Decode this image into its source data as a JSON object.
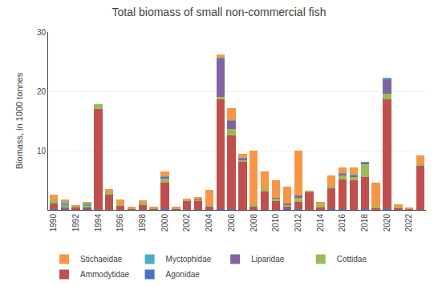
{
  "chart_data": {
    "type": "bar",
    "title": "Total biomass of small non-commercial fish",
    "ylabel": "Biomass, in 1000 tonnes",
    "categories": [
      "1990",
      null,
      "1992",
      null,
      "1994",
      null,
      "1996",
      null,
      "1998",
      null,
      "2000",
      null,
      "2002",
      null,
      "2004",
      null,
      "2006",
      null,
      "2008",
      null,
      "2010",
      null,
      "2012",
      null,
      "2014",
      null,
      "2016",
      null,
      "2018",
      null,
      "2020",
      null,
      "2022",
      null
    ],
    "series": [
      {
        "name": "Agonidae",
        "color": "#4472C4",
        "values": [
          0.1,
          0.1,
          0.05,
          0.1,
          0.05,
          0.05,
          0.05,
          0.05,
          0.05,
          0.05,
          0.1,
          0.05,
          0.05,
          0.05,
          0.1,
          0.1,
          0.1,
          0.05,
          0.05,
          0.05,
          0.05,
          0.1,
          0.1,
          0.05,
          0.05,
          0.1,
          0.1,
          0.05,
          0.1,
          0.05,
          0.1,
          0.05,
          0.05,
          0.05
        ]
      },
      {
        "name": "Ammodytidae",
        "color": "#C0504D",
        "values": [
          1.0,
          0.4,
          0.4,
          0.4,
          17.0,
          2.5,
          0.6,
          0.2,
          0.7,
          0.2,
          4.5,
          0.2,
          1.5,
          1.5,
          0.2,
          18.5,
          12.5,
          8.0,
          0.5,
          3.0,
          1.5,
          0.5,
          1.2,
          3.0,
          0.4,
          3.5,
          5.0,
          5.0,
          5.5,
          0.3,
          18.5,
          0.3,
          0.1,
          7.5
        ]
      },
      {
        "name": "Cottidae",
        "color": "#9BBB59",
        "values": [
          0.5,
          0.2,
          0.1,
          0.2,
          0.8,
          0.4,
          0.3,
          0.1,
          0.5,
          0.1,
          0.8,
          0.1,
          0.1,
          0.1,
          0.1,
          0.5,
          1.0,
          0.3,
          0.4,
          0.4,
          0.4,
          0.3,
          0.7,
          0.2,
          0.4,
          0.4,
          0.8,
          0.5,
          2.2,
          0.2,
          1.0,
          0.1,
          0.05,
          0.2
        ]
      },
      {
        "name": "Liparidae",
        "color": "#8064A2",
        "values": [
          0.0,
          0.0,
          0.0,
          0.0,
          0.0,
          0.0,
          0.0,
          0.0,
          0.0,
          0.0,
          0.2,
          0.0,
          0.1,
          0.1,
          0.2,
          6.5,
          1.5,
          0.3,
          0.0,
          0.0,
          0.1,
          0.2,
          0.5,
          0.0,
          0.0,
          0.0,
          0.2,
          0.3,
          0.2,
          0.0,
          2.5,
          0.0,
          0.0,
          0.0
        ]
      },
      {
        "name": "Myctophidae",
        "color": "#4BACC6",
        "values": [
          0.0,
          0.5,
          0.0,
          0.4,
          0.0,
          0.0,
          0.0,
          0.0,
          0.0,
          0.0,
          0.1,
          0.0,
          0.0,
          0.0,
          0.0,
          0.1,
          0.1,
          0.1,
          0.0,
          0.0,
          0.0,
          0.0,
          0.0,
          0.0,
          0.0,
          0.0,
          0.1,
          0.1,
          0.1,
          0.0,
          0.1,
          0.0,
          0.0,
          0.0
        ]
      },
      {
        "name": "Stichaeidae",
        "color": "#F79646",
        "values": [
          1.0,
          0.6,
          0.2,
          0.2,
          0.0,
          0.5,
          0.8,
          0.1,
          0.4,
          0.2,
          0.8,
          0.1,
          0.1,
          0.4,
          2.8,
          0.5,
          2.0,
          0.7,
          9.0,
          3.0,
          3.0,
          2.8,
          7.5,
          0.0,
          0.5,
          1.8,
          1.0,
          1.2,
          0.0,
          4.0,
          0.0,
          0.5,
          0.1,
          1.5
        ]
      }
    ],
    "stacked": true,
    "ylim": [
      0,
      30
    ],
    "yticks": [
      10,
      20,
      30
    ],
    "grid": true,
    "legend": "bottom"
  }
}
